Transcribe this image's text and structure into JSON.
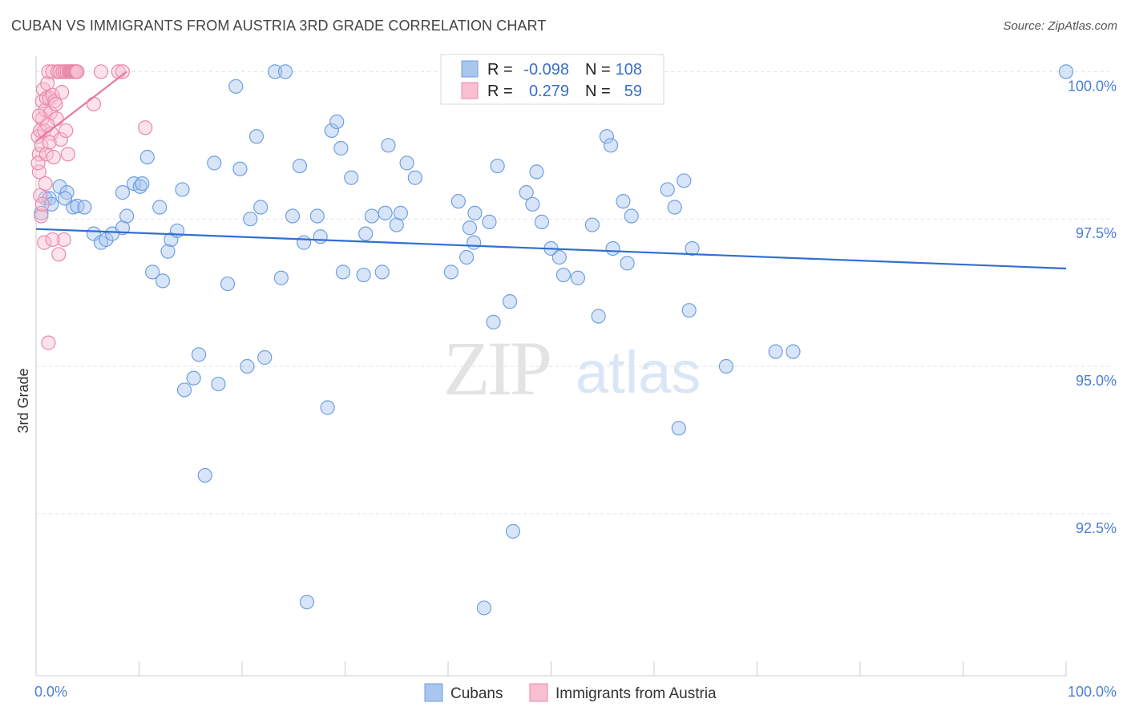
{
  "title": "CUBAN VS IMMIGRANTS FROM AUSTRIA 3RD GRADE CORRELATION CHART",
  "source": "Source: ZipAtlas.com",
  "watermark": {
    "zip": "ZIP",
    "atlas": "atlas"
  },
  "legend": {
    "r_label": "R =",
    "n_label": "N =",
    "rows": [
      {
        "name": "Cubans",
        "r": "-0.098",
        "n": "108",
        "color": "#a9c6ef",
        "stroke": "#6f9fe0"
      },
      {
        "name": "Immigrants from Austria",
        "r": "0.279",
        "n": "59",
        "color": "#f8bfd1",
        "stroke": "#ea89a9"
      }
    ]
  },
  "chart_data": {
    "type": "scatter",
    "title": "CUBAN VS IMMIGRANTS FROM AUSTRIA 3RD GRADE CORRELATION CHART",
    "xlabel": "",
    "ylabel": "3rd Grade",
    "xlim": [
      0,
      100
    ],
    "ylim": [
      89.75,
      100.4
    ],
    "x_tick_labels": [
      "0.0%",
      "100.0%"
    ],
    "y_ticks": [
      {
        "value": 100.0,
        "label": "100.0%"
      },
      {
        "value": 97.5,
        "label": "97.5%"
      },
      {
        "value": 95.0,
        "label": "95.0%"
      },
      {
        "value": 92.5,
        "label": "92.5%"
      }
    ],
    "grid": true,
    "series": [
      {
        "name": "Cubans",
        "color": "#a9c6ef",
        "stroke": "#6f9fe0",
        "trend": {
          "x": [
            0,
            100
          ],
          "y": [
            97.33,
            96.66
          ],
          "color": "#2f6fd0"
        },
        "points": [
          [
            0.5,
            97.6
          ],
          [
            0.9,
            97.85
          ],
          [
            1.3,
            97.85
          ],
          [
            1.5,
            97.75
          ],
          [
            2.3,
            98.05
          ],
          [
            3.0,
            97.95
          ],
          [
            3.6,
            97.7
          ],
          [
            4.0,
            97.72
          ],
          [
            2.8,
            97.85
          ],
          [
            4.7,
            97.7
          ],
          [
            5.6,
            97.25
          ],
          [
            6.3,
            97.1
          ],
          [
            6.8,
            97.15
          ],
          [
            7.4,
            97.25
          ],
          [
            8.4,
            97.35
          ],
          [
            8.4,
            97.95
          ],
          [
            8.8,
            97.55
          ],
          [
            9.5,
            98.1
          ],
          [
            10.1,
            98.05
          ],
          [
            10.3,
            98.1
          ],
          [
            10.8,
            98.55
          ],
          [
            11.3,
            96.6
          ],
          [
            12.0,
            97.7
          ],
          [
            12.3,
            96.45
          ],
          [
            12.8,
            96.95
          ],
          [
            13.1,
            97.15
          ],
          [
            13.7,
            97.3
          ],
          [
            14.2,
            98.0
          ],
          [
            14.4,
            94.6
          ],
          [
            15.3,
            94.8
          ],
          [
            15.8,
            95.2
          ],
          [
            16.4,
            93.15
          ],
          [
            17.3,
            98.45
          ],
          [
            17.7,
            94.7
          ],
          [
            18.6,
            96.4
          ],
          [
            19.4,
            99.75
          ],
          [
            19.8,
            98.35
          ],
          [
            20.5,
            95.0
          ],
          [
            20.8,
            97.5
          ],
          [
            21.4,
            98.9
          ],
          [
            21.8,
            97.7
          ],
          [
            22.2,
            95.15
          ],
          [
            23.2,
            100.0
          ],
          [
            23.8,
            96.5
          ],
          [
            24.2,
            100.0
          ],
          [
            24.9,
            97.55
          ],
          [
            25.6,
            98.4
          ],
          [
            26.0,
            97.1
          ],
          [
            26.3,
            91.0
          ],
          [
            27.3,
            97.55
          ],
          [
            27.6,
            97.2
          ],
          [
            28.3,
            94.3
          ],
          [
            28.7,
            99.0
          ],
          [
            29.2,
            99.15
          ],
          [
            29.6,
            98.7
          ],
          [
            29.8,
            96.6
          ],
          [
            30.6,
            98.2
          ],
          [
            31.8,
            96.55
          ],
          [
            32.0,
            97.25
          ],
          [
            32.6,
            97.55
          ],
          [
            33.6,
            96.6
          ],
          [
            33.9,
            97.6
          ],
          [
            34.2,
            98.75
          ],
          [
            35.0,
            97.4
          ],
          [
            35.4,
            97.6
          ],
          [
            36.0,
            98.45
          ],
          [
            36.8,
            98.2
          ],
          [
            40.3,
            96.6
          ],
          [
            41.0,
            97.8
          ],
          [
            41.8,
            96.85
          ],
          [
            42.1,
            97.35
          ],
          [
            42.5,
            97.1
          ],
          [
            42.6,
            97.6
          ],
          [
            43.5,
            90.9
          ],
          [
            44.0,
            97.45
          ],
          [
            44.4,
            95.75
          ],
          [
            44.8,
            98.4
          ],
          [
            46.0,
            96.1
          ],
          [
            46.3,
            92.2
          ],
          [
            47.6,
            97.95
          ],
          [
            48.2,
            97.75
          ],
          [
            48.6,
            98.3
          ],
          [
            49.1,
            97.45
          ],
          [
            50.0,
            97.0
          ],
          [
            50.8,
            96.85
          ],
          [
            51.2,
            96.55
          ],
          [
            52.6,
            96.5
          ],
          [
            54.0,
            97.4
          ],
          [
            54.6,
            95.85
          ],
          [
            55.4,
            98.9
          ],
          [
            55.8,
            98.75
          ],
          [
            56.0,
            97.0
          ],
          [
            57.0,
            97.8
          ],
          [
            57.4,
            96.75
          ],
          [
            57.8,
            97.55
          ],
          [
            61.3,
            98.0
          ],
          [
            62.0,
            97.7
          ],
          [
            62.4,
            93.95
          ],
          [
            62.9,
            98.15
          ],
          [
            63.4,
            95.95
          ],
          [
            63.7,
            97.0
          ],
          [
            67.0,
            95.0
          ],
          [
            71.8,
            95.25
          ],
          [
            73.5,
            95.25
          ],
          [
            100.0,
            100.0
          ]
        ]
      },
      {
        "name": "Immigrants from Austria",
        "color": "#f8bfd1",
        "stroke": "#ea89a9",
        "trend": {
          "x": [
            0.0,
            8.8
          ],
          "y": [
            98.82,
            100.0
          ],
          "color": "#e87aa0"
        },
        "points": [
          [
            0.2,
            98.9
          ],
          [
            0.3,
            98.6
          ],
          [
            0.3,
            98.3
          ],
          [
            0.4,
            97.9
          ],
          [
            0.5,
            97.55
          ],
          [
            0.2,
            98.45
          ],
          [
            0.4,
            99.0
          ],
          [
            0.6,
            99.2
          ],
          [
            0.6,
            99.5
          ],
          [
            0.7,
            99.7
          ],
          [
            0.5,
            98.75
          ],
          [
            0.8,
            99.0
          ],
          [
            0.9,
            99.35
          ],
          [
            1.0,
            99.55
          ],
          [
            1.1,
            99.8
          ],
          [
            1.2,
            100.0
          ],
          [
            1.3,
            99.55
          ],
          [
            1.4,
            99.3
          ],
          [
            1.5,
            98.95
          ],
          [
            1.6,
            99.6
          ],
          [
            1.0,
            98.6
          ],
          [
            0.8,
            97.1
          ],
          [
            1.3,
            98.8
          ],
          [
            1.6,
            100.0
          ],
          [
            1.8,
            99.5
          ],
          [
            2.0,
            99.2
          ],
          [
            1.7,
            98.55
          ],
          [
            2.1,
            100.0
          ],
          [
            2.3,
            100.0
          ],
          [
            2.5,
            99.65
          ],
          [
            2.6,
            100.0
          ],
          [
            2.8,
            100.0
          ],
          [
            3.0,
            100.0
          ],
          [
            3.1,
            98.6
          ],
          [
            3.2,
            100.0
          ],
          [
            3.3,
            100.0
          ],
          [
            3.4,
            100.0
          ],
          [
            3.5,
            100.0
          ],
          [
            3.6,
            100.0
          ],
          [
            3.7,
            100.0
          ],
          [
            3.8,
            100.0
          ],
          [
            3.9,
            100.0
          ],
          [
            4.0,
            100.0
          ],
          [
            2.2,
            96.9
          ],
          [
            2.7,
            97.15
          ],
          [
            1.6,
            97.15
          ],
          [
            1.2,
            95.4
          ],
          [
            0.6,
            97.75
          ],
          [
            0.9,
            98.1
          ],
          [
            1.1,
            99.1
          ],
          [
            1.9,
            99.45
          ],
          [
            2.4,
            98.85
          ],
          [
            2.9,
            99.0
          ],
          [
            5.6,
            99.45
          ],
          [
            6.3,
            100.0
          ],
          [
            8.0,
            100.0
          ],
          [
            8.4,
            100.0
          ],
          [
            10.6,
            99.05
          ],
          [
            0.3,
            99.25
          ]
        ]
      }
    ]
  }
}
